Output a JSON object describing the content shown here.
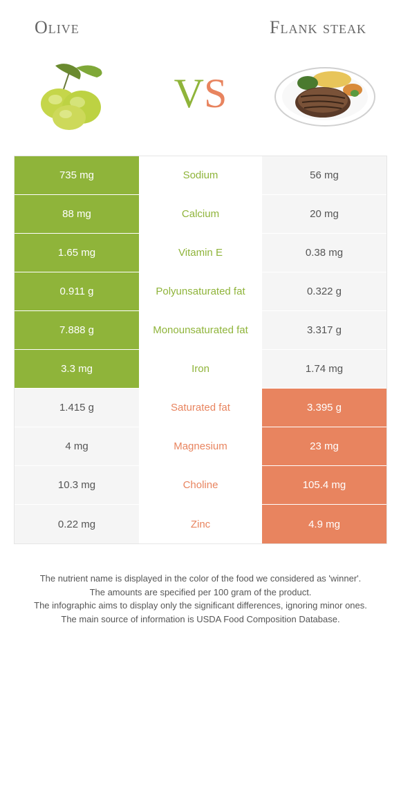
{
  "header": {
    "left": "Olive",
    "right": "Flank steak"
  },
  "vs": {
    "v": "V",
    "s": "S"
  },
  "colors": {
    "olive": "#8fb43a",
    "steak": "#e8845f",
    "neutral_bg": "#f5f5f5",
    "neutral_text": "#555555"
  },
  "rows": [
    {
      "left": "735 mg",
      "mid": "Sodium",
      "right": "56 mg",
      "winner": "left"
    },
    {
      "left": "88 mg",
      "mid": "Calcium",
      "right": "20 mg",
      "winner": "left"
    },
    {
      "left": "1.65 mg",
      "mid": "Vitamin E",
      "right": "0.38 mg",
      "winner": "left"
    },
    {
      "left": "0.911 g",
      "mid": "Polyunsaturated fat",
      "right": "0.322 g",
      "winner": "left"
    },
    {
      "left": "7.888 g",
      "mid": "Monounsaturated fat",
      "right": "3.317 g",
      "winner": "left"
    },
    {
      "left": "3.3 mg",
      "mid": "Iron",
      "right": "1.74 mg",
      "winner": "left"
    },
    {
      "left": "1.415 g",
      "mid": "Saturated fat",
      "right": "3.395 g",
      "winner": "right"
    },
    {
      "left": "4 mg",
      "mid": "Magnesium",
      "right": "23 mg",
      "winner": "right"
    },
    {
      "left": "10.3 mg",
      "mid": "Choline",
      "right": "105.4 mg",
      "winner": "right"
    },
    {
      "left": "0.22 mg",
      "mid": "Zinc",
      "right": "4.9 mg",
      "winner": "right"
    }
  ],
  "footer": {
    "l1": "The nutrient name is displayed in the color of the food we considered as 'winner'.",
    "l2": "The amounts are specified per 100 gram of the product.",
    "l3": "The infographic aims to display only the significant differences, ignoring minor ones.",
    "l4": "The main source of information is USDA Food Composition Database."
  }
}
